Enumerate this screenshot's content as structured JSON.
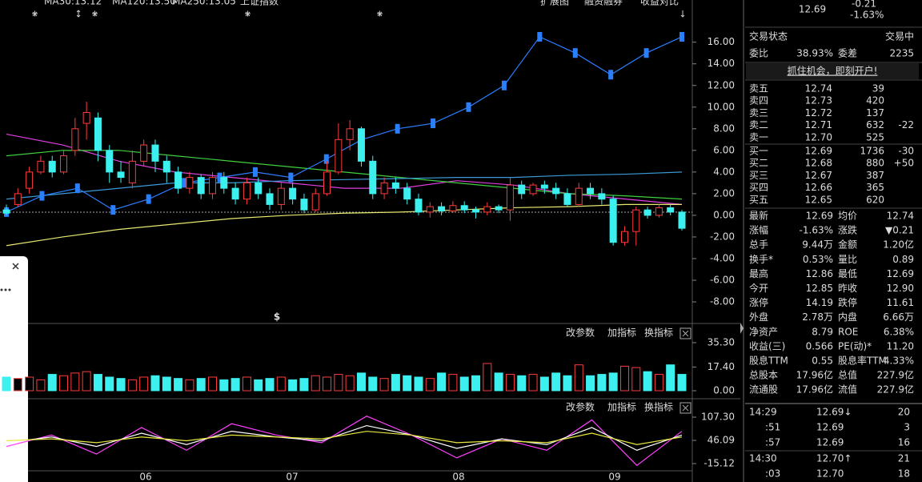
{
  "top_legend": [
    "MA30:13.12",
    "MA120:13.50",
    "MA250:13.05",
    "上证指数",
    "扩展图",
    "融资融券",
    "收益对比"
  ],
  "main_chart": {
    "type": "candlestick",
    "ylim": [
      -9.7,
      19.9
    ],
    "yticks": [
      {
        "value": 16,
        "label": "16.00"
      },
      {
        "value": 14,
        "label": "14.00"
      },
      {
        "value": 12,
        "label": "12.00"
      },
      {
        "value": 10,
        "label": "10.00"
      },
      {
        "value": 8,
        "label": "8.00"
      },
      {
        "value": 6,
        "label": "6.00"
      },
      {
        "value": 4,
        "label": "4.00"
      },
      {
        "value": 2,
        "label": "2.00"
      },
      {
        "value": 0,
        "label": "0.00"
      },
      {
        "value": -2,
        "label": "-2.00"
      },
      {
        "value": -4,
        "label": "-4.00"
      },
      {
        "value": -6,
        "label": "-6.00"
      },
      {
        "value": -8,
        "label": "-8.00"
      }
    ],
    "candles": [
      [
        0.5,
        0.2,
        1,
        0
      ],
      [
        1,
        2,
        2.5,
        0.8
      ],
      [
        2.5,
        4,
        4.5,
        2
      ],
      [
        4,
        5,
        5.5,
        3.8
      ],
      [
        5,
        4,
        5.5,
        3.5
      ],
      [
        4,
        5.5,
        6,
        3.8
      ],
      [
        6,
        8,
        9,
        5.5
      ],
      [
        8.5,
        9.5,
        10.5,
        7
      ],
      [
        9,
        6,
        9.5,
        5
      ],
      [
        6,
        4,
        6.5,
        3
      ],
      [
        4,
        3.5,
        5,
        3
      ],
      [
        3,
        5,
        6,
        2.5
      ],
      [
        5,
        6.5,
        7,
        4.5
      ],
      [
        6.5,
        5,
        7,
        4
      ],
      [
        5,
        4,
        5.5,
        3
      ],
      [
        4,
        2.5,
        4.5,
        2
      ],
      [
        2.5,
        3.5,
        4,
        2
      ],
      [
        3.5,
        2,
        3.8,
        1.5
      ],
      [
        2,
        3.5,
        4,
        1.5
      ],
      [
        3.5,
        2.5,
        4,
        2
      ],
      [
        2.5,
        1.5,
        3,
        1
      ],
      [
        1.5,
        3,
        3.5,
        1
      ],
      [
        3,
        2,
        3.5,
        1.5
      ],
      [
        2,
        1,
        2.5,
        0.5
      ],
      [
        1,
        2.5,
        3,
        0.5
      ],
      [
        2.5,
        1.5,
        3,
        1
      ],
      [
        1.5,
        0.5,
        2,
        0.2
      ],
      [
        0.5,
        2,
        2.5,
        0.3
      ],
      [
        2,
        4,
        5,
        1.8
      ],
      [
        4,
        7,
        8.5,
        3.8
      ],
      [
        7,
        8,
        8.8,
        6
      ],
      [
        8,
        5,
        8.2,
        4.5
      ],
      [
        5,
        2,
        5.5,
        1.5
      ],
      [
        2,
        3,
        3.5,
        1.5
      ],
      [
        3,
        2.5,
        3.5,
        2
      ],
      [
        2.5,
        1.5,
        3,
        1
      ],
      [
        1.5,
        0.3,
        2,
        0
      ],
      [
        0.3,
        0.8,
        1.2,
        -0.2
      ],
      [
        0.8,
        0.4,
        1.2,
        0
      ],
      [
        0.4,
        0.9,
        1.3,
        0.2
      ],
      [
        0.9,
        0.5,
        1.3,
        0.2
      ],
      [
        0.5,
        0.3,
        0.8,
        -0.3
      ],
      [
        0.3,
        0.8,
        1.2,
        0
      ],
      [
        0.8,
        0.5,
        1,
        0.2
      ],
      [
        0.5,
        2.8,
        3.5,
        -0.5
      ],
      [
        2.8,
        2,
        3.2,
        1.5
      ],
      [
        2,
        2.8,
        3,
        1.8
      ],
      [
        2.8,
        2.5,
        3.2,
        2
      ],
      [
        2.5,
        2,
        3,
        1.5
      ],
      [
        2,
        1,
        2.5,
        0.8
      ],
      [
        1,
        2.5,
        3,
        0.8
      ],
      [
        2.5,
        2,
        3,
        1.5
      ],
      [
        2,
        1.5,
        2.5,
        1
      ],
      [
        1.5,
        -2.5,
        1.8,
        -2.8
      ],
      [
        -2.5,
        -1.5,
        -1,
        -2.8
      ],
      [
        -1.5,
        0.5,
        0.8,
        -2.8
      ],
      [
        0.5,
        0,
        0.8,
        -0.3
      ],
      [
        0,
        0.7,
        1,
        -0.2
      ],
      [
        0.7,
        0.3,
        1,
        0
      ],
      [
        0.3,
        -1.2,
        0.5,
        -1.4
      ]
    ],
    "overlay": {
      "color": "#2a7fff",
      "values": [
        0.3,
        1.8,
        2.5,
        0.5,
        1.5,
        3,
        3.5,
        4,
        3.5,
        5.2,
        7,
        8,
        8.5,
        10,
        12,
        16.5,
        15,
        13,
        15,
        16.5
      ]
    },
    "lines": [
      {
        "color": "#e040e0",
        "values": [
          7.5,
          6.5,
          5,
          4,
          3.5,
          3,
          2.5,
          2.5,
          3.2,
          2.8,
          2,
          1.5,
          1
        ]
      },
      {
        "color": "#40d040",
        "values": [
          5.5,
          6,
          6,
          5.5,
          5,
          4.5,
          4,
          3.5,
          3,
          2.5,
          2,
          1.8,
          1.5
        ]
      },
      {
        "color": "#3a9ad9",
        "values": [
          1.5,
          2,
          2.5,
          3,
          3,
          3.2,
          3.3,
          3.4,
          3.5,
          3.5,
          3.7,
          3.8,
          4
        ]
      },
      {
        "color": "#e8e870",
        "values": [
          -2.8,
          -2,
          -1.3,
          -0.8,
          -0.3,
          0,
          0.2,
          0.3,
          0.5,
          0.7,
          0.8,
          1,
          1
        ]
      }
    ],
    "marker": "$"
  },
  "volume_chart": {
    "type": "bar",
    "ylim": [
      -5.3,
      48.8
    ],
    "yticks": [
      {
        "value": 35.3,
        "label": "35.30"
      },
      {
        "value": 17.4,
        "label": "17.40"
      },
      {
        "value": 0,
        "label": "0.00"
      }
    ],
    "values": [
      10,
      9,
      10,
      8,
      12,
      11,
      13,
      14,
      12,
      10,
      9,
      8,
      10,
      11,
      10,
      9,
      8,
      9,
      10,
      8,
      9,
      10,
      8,
      9,
      10,
      8,
      9,
      11,
      10,
      12,
      11,
      13,
      10,
      9,
      12,
      11,
      10,
      9,
      13,
      12,
      10,
      11,
      20,
      13,
      12,
      11,
      12,
      10,
      13,
      11,
      19,
      11,
      12,
      13,
      18,
      17,
      14,
      12,
      19,
      12
    ]
  },
  "kdj_chart": {
    "type": "line",
    "ylim": [
      -38.3,
      151.6
    ],
    "yticks": [
      {
        "value": 107.3,
        "label": "107.30"
      },
      {
        "value": 46.09,
        "label": "46.09"
      },
      {
        "value": -15.12,
        "label": "-15.12"
      }
    ],
    "series": [
      {
        "color": "#ff40ff",
        "values": [
          30,
          60,
          10,
          80,
          20,
          90,
          60,
          40,
          110,
          60,
          0,
          50,
          20,
          100,
          -20,
          70
        ]
      },
      {
        "color": "#ffffff",
        "values": [
          40,
          55,
          30,
          65,
          35,
          70,
          55,
          45,
          85,
          60,
          25,
          50,
          35,
          80,
          20,
          60
        ]
      },
      {
        "color": "#e8e840",
        "values": [
          45,
          50,
          40,
          55,
          45,
          60,
          55,
          50,
          70,
          60,
          40,
          45,
          40,
          65,
          35,
          55
        ]
      }
    ]
  },
  "x_labels": [
    "06",
    "07",
    "08",
    "09"
  ],
  "buttons": [
    "改参数",
    "加指标",
    "换指标"
  ],
  "quote": {
    "price": "12.69",
    "change": "-0.21",
    "pct": "-1.63%"
  },
  "status": [
    "交易状态",
    "交易中"
  ],
  "ratio": [
    "委比",
    "38.93%",
    "委差",
    "2235"
  ],
  "banner": "抓住机会，即刻开户!",
  "sells": [
    [
      "卖五",
      "12.74",
      "39",
      ""
    ],
    [
      "卖四",
      "12.73",
      "420",
      ""
    ],
    [
      "卖三",
      "12.72",
      "137",
      ""
    ],
    [
      "卖二",
      "12.71",
      "632",
      "-22"
    ],
    [
      "卖一",
      "12.70",
      "525",
      ""
    ]
  ],
  "buys": [
    [
      "买一",
      "12.69",
      "1736",
      "-30"
    ],
    [
      "买二",
      "12.68",
      "880",
      "+50"
    ],
    [
      "买三",
      "12.67",
      "387",
      ""
    ],
    [
      "买四",
      "12.66",
      "365",
      ""
    ],
    [
      "买五",
      "12.65",
      "620",
      ""
    ]
  ],
  "stats": [
    [
      "最新",
      "12.69",
      "均价",
      "12.74"
    ],
    [
      "涨幅",
      "-1.63%",
      "涨跌",
      "▼0.21"
    ],
    [
      "总手",
      "9.44万",
      "金额",
      "1.20亿"
    ],
    [
      "换手*",
      "0.53%",
      "量比",
      "0.89"
    ],
    [
      "最高",
      "12.86",
      "最低",
      "12.69"
    ],
    [
      "今开",
      "12.85",
      "昨收",
      "12.90"
    ],
    [
      "涨停",
      "14.19",
      "跌停",
      "11.61"
    ],
    [
      "外盘",
      "2.78万",
      "内盘",
      "6.66万"
    ],
    [
      "净资产",
      "8.79",
      "ROE",
      "6.38%"
    ],
    [
      "收益(三)",
      "0.566",
      "PE(动)*",
      "11.20"
    ],
    [
      "股息TTM",
      "0.55",
      "股息率TTM",
      "4.33%"
    ],
    [
      "总股本",
      "17.96亿",
      "总值",
      "227.9亿"
    ],
    [
      "流通股",
      "17.96亿",
      "流值",
      "227.9亿"
    ]
  ],
  "ticks": [
    [
      "14:29",
      "12.69↓",
      "20"
    ],
    [
      ":51",
      "12.69",
      "3"
    ],
    [
      ":57",
      "12.69",
      "16"
    ],
    [
      "14:30",
      "12.70↑",
      "21"
    ],
    [
      ":03",
      "12.70",
      "18"
    ]
  ]
}
